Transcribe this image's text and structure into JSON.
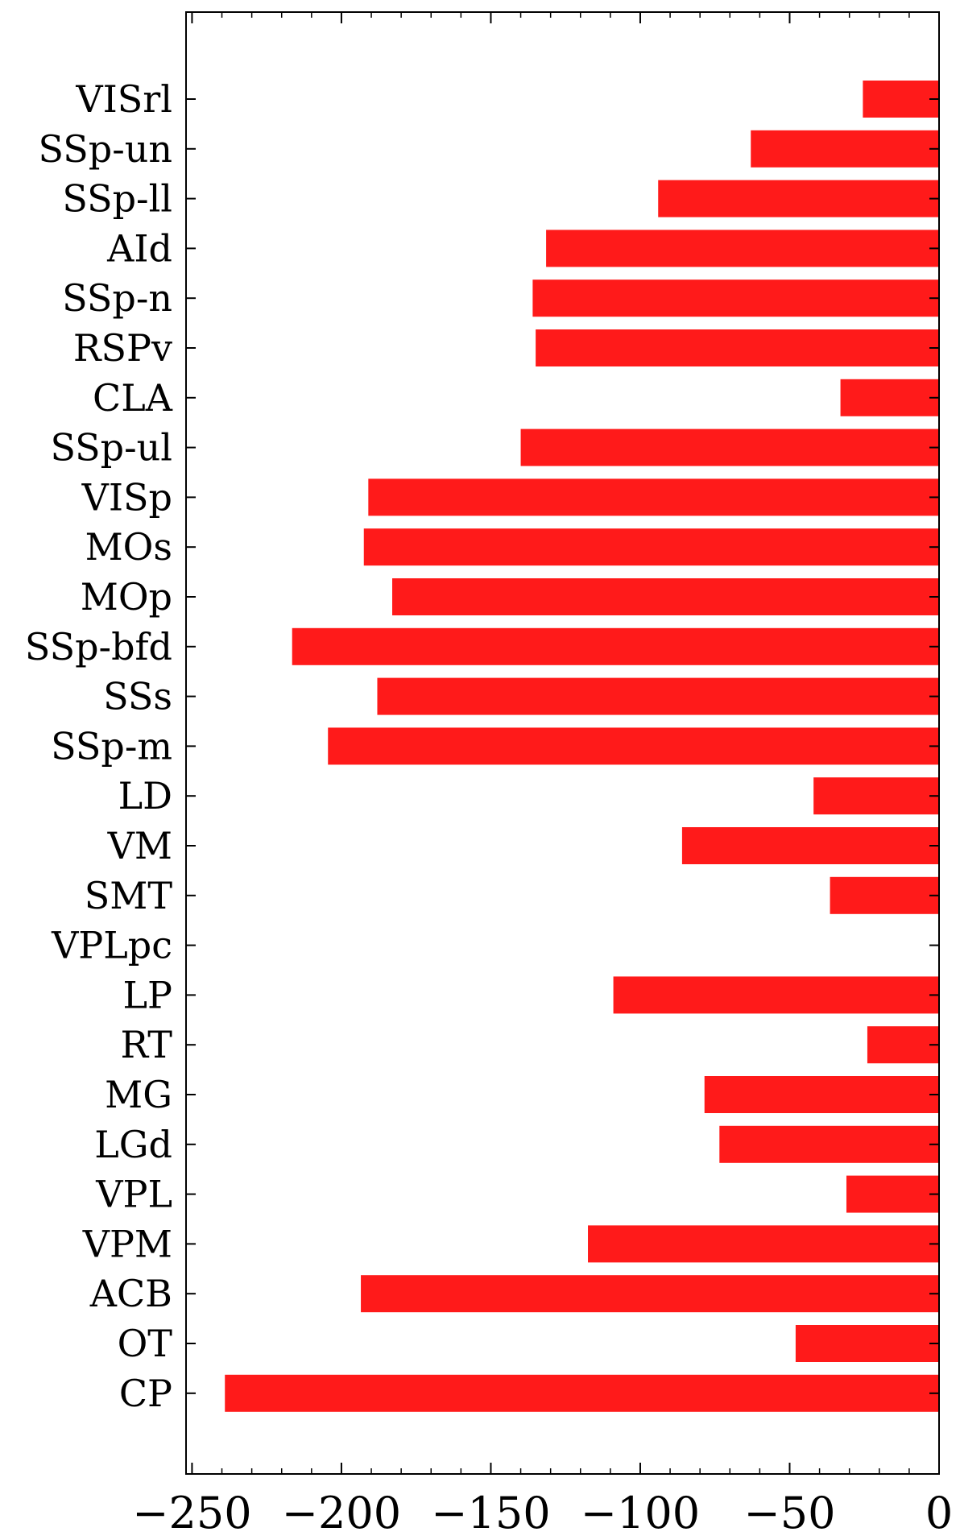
{
  "chart_data": {
    "type": "bar",
    "orientation": "horizontal",
    "title": "",
    "xlabel": "",
    "ylabel": "",
    "xlim": [
      -252,
      0
    ],
    "xticks": [
      -250,
      -200,
      -150,
      -100,
      -50,
      0
    ],
    "xtick_labels": [
      "−250",
      "−200",
      "−150",
      "−100",
      "−50",
      "0"
    ],
    "bar_color": "#ff1a1a",
    "grid": false,
    "legend": "none",
    "categories": [
      "VISrl",
      "SSp-un",
      "SSp-ll",
      "AId",
      "SSp-n",
      "RSPv",
      "CLA",
      "SSp-ul",
      "VISp",
      "MOs",
      "MOp",
      "SSp-bfd",
      "SSs",
      "SSp-m",
      "LD",
      "VM",
      "SMT",
      "VPLpc",
      "LP",
      "RT",
      "MG",
      "LGd",
      "VPL",
      "VPM",
      "ACB",
      "OT",
      "CP"
    ],
    "values": [
      -25.5,
      -63,
      -94,
      -131.5,
      -136,
      -135,
      -33,
      -140,
      -191,
      -192.5,
      -183,
      -216.5,
      -188,
      -204.5,
      -42,
      -86,
      -36.5,
      0,
      -109,
      -24,
      -78.5,
      -73.5,
      -31,
      -117.5,
      -193.5,
      -48,
      -239
    ]
  }
}
